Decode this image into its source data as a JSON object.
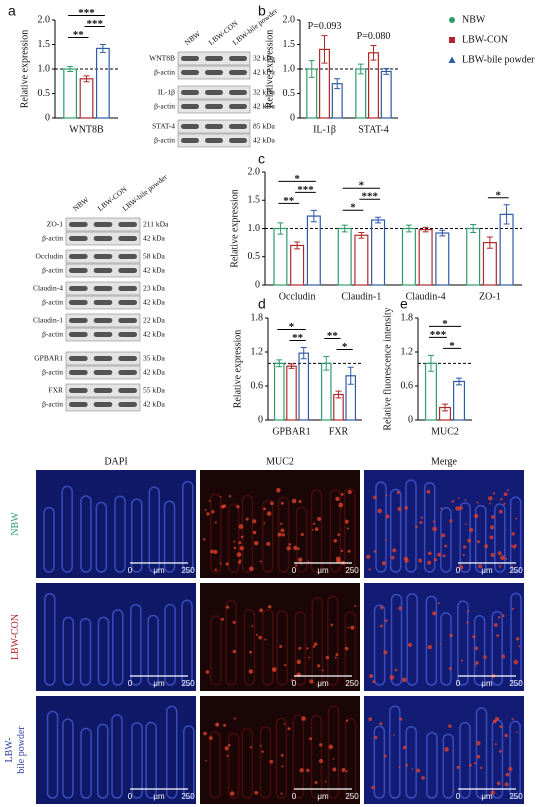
{
  "chart_data": [
    {
      "type": "bar",
      "panel": "a",
      "ylabel": "Relative expression",
      "categories": [
        "WNT8B"
      ],
      "series": [
        {
          "color": "#2e9c6a",
          "values": [
            1.0
          ],
          "errors": [
            0.05
          ]
        },
        {
          "color": "#b0282a",
          "values": [
            0.8
          ],
          "errors": [
            0.06
          ]
        },
        {
          "color": "#2f5aa8",
          "values": [
            1.42
          ],
          "errors": [
            0.08
          ]
        }
      ],
      "ylim": [
        0,
        2
      ],
      "yticks": [
        0,
        0.5,
        {
          "value": 1,
          "label": "1.0"
        },
        1.5,
        {
          "value": 2,
          "label": "2.0"
        }
      ],
      "reference_line": 1,
      "significance": [
        [
          {
            "between": [
              0,
              1
            ],
            "label": "**"
          },
          {
            "between": [
              1,
              2
            ],
            "label": "***"
          },
          {
            "between": [
              0,
              2
            ],
            "label": "***"
          }
        ]
      ]
    },
    {
      "type": "bar",
      "panel": "b",
      "ylabel": "Relative expression",
      "categories": [
        "IL-1β",
        "STAT-4"
      ],
      "series": [
        {
          "name": "NBW",
          "color": "#2e9c6a",
          "values": [
            1.0,
            1.0
          ],
          "errors": [
            0.17,
            0.1
          ]
        },
        {
          "name": "LBW-CON",
          "color": "#b0282a",
          "values": [
            1.4,
            1.33
          ],
          "errors": [
            0.28,
            0.15
          ]
        },
        {
          "name": "LBW-bile powder",
          "color": "#2f5aa8",
          "values": [
            0.7,
            0.95
          ],
          "errors": [
            0.1,
            0.06
          ]
        }
      ],
      "ylim": [
        0,
        2
      ],
      "yticks": [
        0,
        0.5,
        {
          "value": 1,
          "label": "1.0"
        },
        1.5,
        {
          "value": 2,
          "label": "2.0"
        }
      ],
      "reference_line": 1,
      "p_values": [
        "P=0.093",
        "P=0.080"
      ],
      "legend": "right"
    },
    {
      "type": "bar",
      "panel": "c",
      "ylabel": "Relative expression",
      "categories": [
        "Occludin",
        "Claudin-1",
        "Claudin-4",
        "ZO-1"
      ],
      "series": [
        {
          "color": "#2e9c6a",
          "values": [
            1.0,
            1.0,
            1.0,
            1.0
          ],
          "errors": [
            0.1,
            0.06,
            0.06,
            0.07
          ]
        },
        {
          "color": "#b0282a",
          "values": [
            0.7,
            0.88,
            0.98,
            0.75
          ],
          "errors": [
            0.06,
            0.05,
            0.04,
            0.1
          ]
        },
        {
          "color": "#2f5aa8",
          "values": [
            1.22,
            1.15,
            0.92,
            1.25
          ],
          "errors": [
            0.1,
            0.05,
            0.05,
            0.17
          ]
        }
      ],
      "ylim": [
        0,
        2
      ],
      "yticks": [
        0,
        0.5,
        {
          "value": 1,
          "label": "1.0"
        },
        1.5,
        {
          "value": 2,
          "label": "2.0"
        }
      ],
      "reference_line": 1,
      "significance": [
        [
          {
            "between": [
              0,
              1
            ],
            "label": "**"
          },
          {
            "between": [
              1,
              2
            ],
            "label": "***"
          },
          {
            "between": [
              0,
              2
            ],
            "label": "*"
          }
        ],
        [
          {
            "between": [
              0,
              1
            ],
            "label": "*"
          },
          {
            "between": [
              1,
              2
            ],
            "label": "***"
          },
          {
            "between": [
              0,
              2
            ],
            "label": "*"
          }
        ],
        [],
        [
          {
            "between": [
              1,
              2
            ],
            "label": "*"
          }
        ]
      ]
    },
    {
      "type": "bar",
      "panel": "d",
      "ylabel": "Relative expression",
      "categories": [
        "GPBAR1",
        "FXR"
      ],
      "series": [
        {
          "color": "#2e9c6a",
          "values": [
            1.0,
            1.0
          ],
          "errors": [
            0.06,
            0.12
          ]
        },
        {
          "color": "#b0282a",
          "values": [
            0.95,
            0.45
          ],
          "errors": [
            0.04,
            0.06
          ]
        },
        {
          "color": "#2f5aa8",
          "values": [
            1.18,
            0.78
          ],
          "errors": [
            0.1,
            0.15
          ]
        }
      ],
      "ylim": [
        0,
        1.8
      ],
      "yticks": [
        0,
        0.6,
        1.2,
        1.8
      ],
      "reference_line": 1,
      "significance": [
        [
          {
            "between": [
              1,
              2
            ],
            "label": "**"
          },
          {
            "between": [
              0,
              2
            ],
            "label": "*"
          }
        ],
        [
          {
            "between": [
              1,
              2
            ],
            "label": "*"
          },
          {
            "between": [
              0,
              1
            ],
            "label": "**"
          }
        ]
      ]
    },
    {
      "type": "bar",
      "panel": "e",
      "ylabel": "Relative fluorescence intensity",
      "categories": [
        "MUC2"
      ],
      "series": [
        {
          "color": "#2e9c6a",
          "values": [
            1.0
          ],
          "errors": [
            0.14
          ]
        },
        {
          "color": "#b0282a",
          "values": [
            0.22
          ],
          "errors": [
            0.06
          ]
        },
        {
          "color": "#2f5aa8",
          "values": [
            0.68
          ],
          "errors": [
            0.06
          ]
        }
      ],
      "ylim": [
        0,
        1.8
      ],
      "yticks": [
        0,
        0.6,
        1.2,
        1.8
      ],
      "reference_line": 1,
      "significance": [
        [
          {
            "between": [
              1,
              2
            ],
            "label": "*"
          },
          {
            "between": [
              0,
              1
            ],
            "label": "***"
          },
          {
            "between": [
              0,
              2
            ],
            "label": "*"
          }
        ]
      ]
    }
  ],
  "blots": [
    {
      "columns": [
        "NBW",
        "LBW-CON",
        "LBW-bile powder"
      ],
      "rows": [
        {
          "protein": "WNT8B",
          "size": "32 kDa"
        },
        {
          "protein": "β-actin",
          "size": "42 kDa"
        },
        {
          "protein": "IL-1β",
          "size": "32 kDa"
        },
        {
          "protein": "β-actin",
          "size": "42 kDa"
        },
        {
          "protein": "STAT-4",
          "size": "85 kDa"
        },
        {
          "protein": "β-actin",
          "size": "42 kDa"
        }
      ]
    },
    {
      "columns": [
        "NBW",
        "LBW-CON",
        "LBW-bile powder"
      ],
      "rows": [
        {
          "protein": "ZO-1",
          "size": "211 kDa"
        },
        {
          "protein": "β-actin",
          "size": "42 kDa"
        },
        {
          "protein": "Occludin",
          "size": "58 kDa"
        },
        {
          "protein": "β-actin",
          "size": "42 kDa"
        },
        {
          "protein": "Claudin-4",
          "size": "23 kDa"
        },
        {
          "protein": "β-actin",
          "size": "42 kDa"
        },
        {
          "protein": "Claudin-1",
          "size": "22 kDa"
        },
        {
          "protein": "β-actin",
          "size": "42 kDa"
        }
      ]
    },
    {
      "rows": [
        {
          "protein": "GPBAR1",
          "size": "35 kDa"
        },
        {
          "protein": "β-actin",
          "size": "42 kDa"
        },
        {
          "protein": "FXR",
          "size": "55 kDa"
        },
        {
          "protein": "β-actin",
          "size": "42 kDa"
        }
      ]
    }
  ],
  "microscopy": {
    "columns": [
      "DAPI",
      "MUC2",
      "Merge"
    ],
    "rows": [
      {
        "label": [
          "NBW"
        ],
        "color": "#2e9c6a"
      },
      {
        "label": [
          "LBW-CON"
        ],
        "color": "#b0282a"
      },
      {
        "label": [
          "LBW-",
          "bile powder"
        ],
        "color": "#3040a8"
      }
    ],
    "scale_bar": {
      "start": "0",
      "unit": "μm",
      "end": "250"
    }
  }
}
